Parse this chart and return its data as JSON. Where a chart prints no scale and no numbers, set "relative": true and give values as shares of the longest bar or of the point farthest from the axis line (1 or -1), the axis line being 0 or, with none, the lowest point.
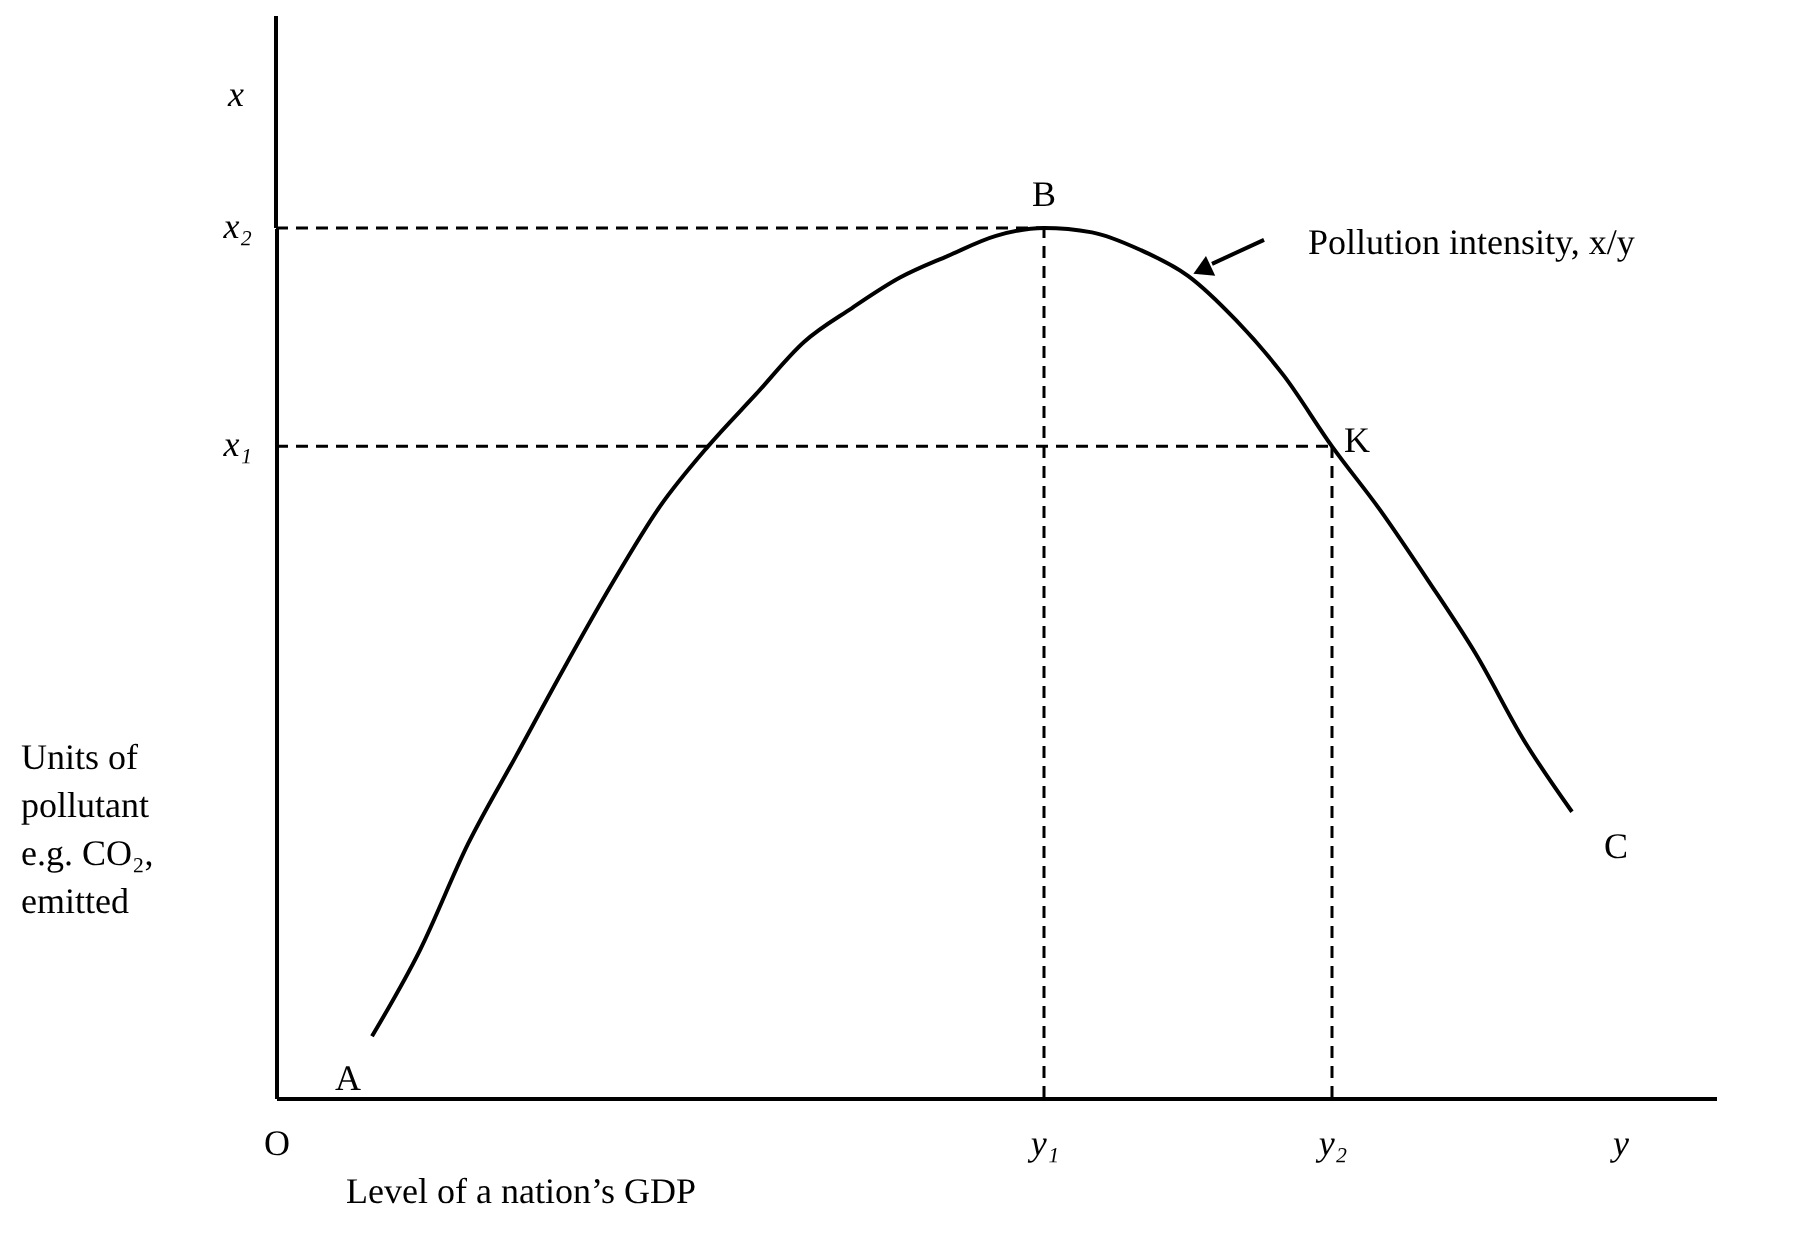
{
  "chart_data": {
    "type": "line",
    "relative": true,
    "xlabel": "Level of a nation’s GDP",
    "ylabel": "Units of\npollutant\ne.g. CO₂,\nemitted",
    "categories": [
      "O",
      null,
      null,
      null,
      null,
      null,
      null,
      null,
      null,
      null,
      null,
      null,
      null,
      null,
      null,
      null,
      "y₁",
      null,
      null,
      null,
      null,
      null,
      "y₂",
      null,
      null,
      null,
      null,
      null,
      "y",
      null,
      null
    ],
    "series": [
      {
        "color": "#000000",
        "line_style": "solid",
        "values": [
          null,
          null,
          0.071,
          0.17,
          0.292,
          0.393,
          0.494,
          0.591,
          0.68,
          0.749,
          0.809,
          0.869,
          0.908,
          0.943,
          0.968,
          0.991,
          1,
          0.995,
          0.975,
          0.945,
          0.894,
          0.83,
          0.749,
          0.676,
          0.595,
          0.51,
          0.411,
          0.329,
          null,
          null,
          null
        ]
      },
      {
        "type": "line",
        "color": "#000000",
        "line_style": "dashed",
        "x": [
          "O",
          "y₁"
        ],
        "values": [
          1,
          1
        ]
      },
      {
        "type": "line",
        "color": "#000000",
        "line_style": "dashed",
        "x": [
          "O",
          "y₂"
        ],
        "values": [
          0.749,
          0.749
        ]
      },
      {
        "type": "line",
        "color": "#000000",
        "line_style": "dashed",
        "x": [
          "y₁",
          "y₁"
        ],
        "values": [
          0,
          1
        ]
      },
      {
        "type": "line",
        "color": "#000000",
        "line_style": "dashed",
        "x": [
          "y₂",
          "y₂"
        ],
        "values": [
          0,
          0.749
        ]
      }
    ],
    "annotations": [
      "A",
      "C",
      "x",
      "Pollution intensity, x/y",
      {
        "text": "B",
        "x": "y₁",
        "y": 1
      },
      {
        "text": "K",
        "x": "y₂",
        "y": 0.749
      },
      {
        "text": "x₁",
        "x": "O",
        "y": 0.749
      },
      {
        "text": "x₂",
        "x": "O",
        "y": 1
      }
    ]
  }
}
